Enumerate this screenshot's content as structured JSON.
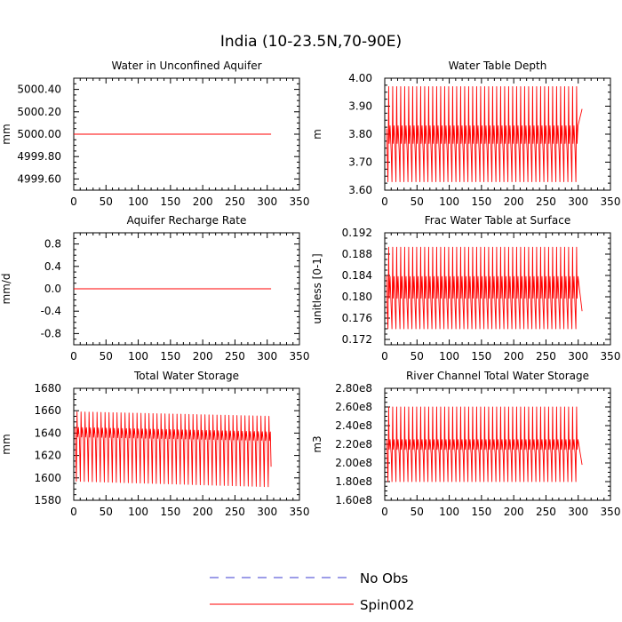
{
  "figure": {
    "title": "India (10-23.5N,70-90E)",
    "legend": [
      {
        "label": "No Obs",
        "color": "#3b3bd0",
        "dash": "dashed"
      },
      {
        "label": "Spin002",
        "color": "#ff0000",
        "dash": "solid"
      }
    ]
  },
  "chart_data": [
    {
      "type": "line",
      "title": "Water in Unconfined Aquifer",
      "ylabel": "mm",
      "xlim": [
        0,
        350
      ],
      "ylim": [
        4999.5,
        5000.5
      ],
      "xticks": [
        0,
        50,
        100,
        150,
        200,
        250,
        300,
        350
      ],
      "yticks": [
        4999.6,
        4999.8,
        5000.0,
        5000.2,
        5000.4
      ],
      "ytick_labels": [
        "4999.60",
        "4999.80",
        "5000.00",
        "5000.20",
        "5000.40"
      ],
      "series": [
        {
          "name": "Spin002",
          "constant": 5000.0,
          "x_range": [
            0,
            306
          ]
        }
      ]
    },
    {
      "type": "line",
      "title": "Water Table Depth",
      "ylabel": "m",
      "xlim": [
        0,
        350
      ],
      "ylim": [
        3.6,
        4.0
      ],
      "xticks": [
        0,
        50,
        100,
        150,
        200,
        250,
        300,
        350
      ],
      "yticks": [
        3.6,
        3.7,
        3.8,
        3.9,
        4.0
      ],
      "ytick_labels": [
        "3.60",
        "3.70",
        "3.80",
        "3.90",
        "4.00"
      ],
      "series": [
        {
          "name": "Spin002",
          "cycle": {
            "start": 3,
            "end": 306,
            "period": 6.2,
            "max": 3.97,
            "high": 3.83,
            "mid": 3.74,
            "min": 3.63,
            "first_max": 3.82,
            "end_value": 3.89
          }
        }
      ]
    },
    {
      "type": "line",
      "title": "Aquifer Recharge Rate",
      "ylabel": "mm/d",
      "xlim": [
        0,
        350
      ],
      "ylim": [
        -1.0,
        1.0
      ],
      "xticks": [
        0,
        50,
        100,
        150,
        200,
        250,
        300,
        350
      ],
      "yticks": [
        -0.8,
        -0.4,
        0.0,
        0.4,
        0.8
      ],
      "ytick_labels": [
        "-0.8",
        "-0.4",
        "0.0",
        "0.4",
        "0.8"
      ],
      "series": [
        {
          "name": "Spin002",
          "constant": 0.0,
          "x_range": [
            0,
            306
          ]
        }
      ]
    },
    {
      "type": "line",
      "title": "Frac Water Table at Surface",
      "ylabel": "unitless [0-1]",
      "xlim": [
        0,
        350
      ],
      "ylim": [
        0.171,
        0.192
      ],
      "xticks": [
        0,
        50,
        100,
        150,
        200,
        250,
        300,
        350
      ],
      "yticks": [
        0.172,
        0.176,
        0.18,
        0.184,
        0.188,
        0.192
      ],
      "ytick_labels": [
        "0.172",
        "0.176",
        "0.180",
        "0.184",
        "0.188",
        "0.192"
      ],
      "series": [
        {
          "name": "Spin002",
          "cycle": {
            "start": 3,
            "end": 306,
            "period": 6.2,
            "max": 0.1893,
            "high": 0.1838,
            "mid": 0.178,
            "min": 0.174,
            "first_max": 0.184,
            "end_value": 0.1773
          }
        }
      ]
    },
    {
      "type": "line",
      "title": "Total Water Storage",
      "ylabel": "mm",
      "xlim": [
        0,
        350
      ],
      "ylim": [
        1580,
        1680
      ],
      "xticks": [
        0,
        50,
        100,
        150,
        200,
        250,
        300,
        350
      ],
      "yticks": [
        1580,
        1600,
        1620,
        1640,
        1660,
        1680
      ],
      "ytick_labels": [
        "1580",
        "1600",
        "1620",
        "1640",
        "1660",
        "1680"
      ],
      "series": [
        {
          "name": "Spin002",
          "cycle": {
            "start": 2,
            "end": 306,
            "period": 6.2,
            "max_start": 1659,
            "max_end": 1655,
            "high_start": 1645,
            "high_end": 1641,
            "mid_start": 1633,
            "mid_end": 1630,
            "min_start": 1597,
            "min_end": 1592,
            "first_max": 1645,
            "end_value": 1610
          }
        }
      ]
    },
    {
      "type": "line",
      "title": "River Channel Total Water Storage",
      "ylabel": "m3",
      "xlim": [
        0,
        350
      ],
      "ylim": [
        160000000,
        280000000
      ],
      "xticks": [
        0,
        50,
        100,
        150,
        200,
        250,
        300,
        350
      ],
      "yticks": [
        160000000,
        180000000,
        200000000,
        220000000,
        240000000,
        260000000,
        280000000
      ],
      "ytick_labels": [
        "1.60e8",
        "1.80e8",
        "2.00e8",
        "2.20e8",
        "2.40e8",
        "2.60e8",
        "2.80e8"
      ],
      "series": [
        {
          "name": "Spin002",
          "cycle": {
            "start": 3,
            "end": 306,
            "period": 6.2,
            "max": 260000000,
            "high": 225000000,
            "mid": 210000000,
            "min": 180000000,
            "first_max": 225000000,
            "end_value": 198000000
          }
        }
      ]
    }
  ]
}
